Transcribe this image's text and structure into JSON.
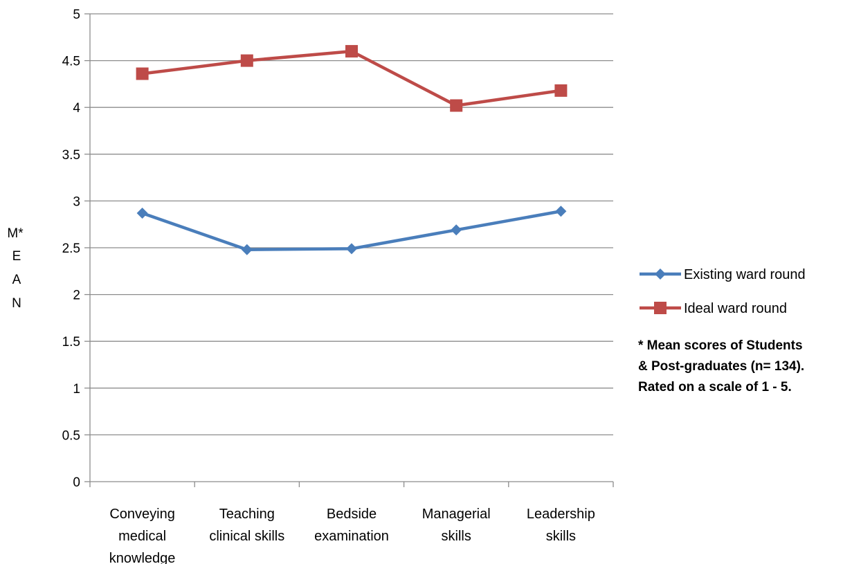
{
  "chart_data": {
    "type": "line",
    "categories": [
      [
        "Conveying",
        "medical",
        "knowledge"
      ],
      [
        "Teaching",
        "clinical  skills"
      ],
      [
        "Bedside",
        "examination"
      ],
      [
        "Managerial",
        "skills"
      ],
      [
        "Leadership",
        "skills"
      ]
    ],
    "series": [
      {
        "name": "Existing ward round",
        "color": "#4a7ebb",
        "marker": "diamond",
        "values": [
          2.87,
          2.48,
          2.49,
          2.69,
          2.89
        ]
      },
      {
        "name": "Ideal ward round",
        "color": "#be4b48",
        "marker": "square",
        "values": [
          4.36,
          4.5,
          4.6,
          4.02,
          4.18
        ]
      }
    ],
    "ylabel": [
      "M*",
      "E",
      "A",
      "N"
    ],
    "ylim": [
      0,
      5
    ],
    "yticks": [
      "0",
      "0.5",
      "1",
      "1.5",
      "2",
      "2.5",
      "3",
      "3.5",
      "4",
      "4.5",
      "5"
    ],
    "grid": "horizontal",
    "legend": "right",
    "note": [
      "* Mean scores of  Students",
      "& Post-graduates (n= 134).",
      "Rated on a scale of 1 - 5."
    ]
  }
}
